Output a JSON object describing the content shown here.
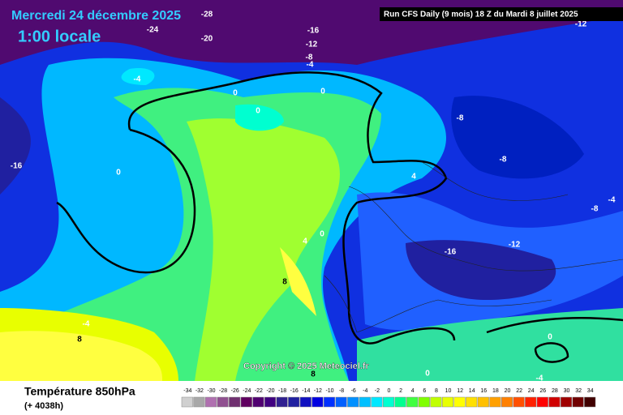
{
  "header": {
    "date": "Mercredi 24 décembre 2025",
    "time": "1:00 locale",
    "run": "Run CFS Daily (9 mois) 18 Z du Mardi 8 juillet 2025"
  },
  "copyright": "Copyright © 2025 Meteociel.fr",
  "footer": {
    "title": "Température 850hPa",
    "lead": "(+ 4038h)"
  },
  "contour_labels": [
    -28,
    -24,
    -20,
    -16,
    -12,
    -8,
    -4,
    -4,
    0,
    0,
    0,
    -8,
    -8,
    0,
    -16,
    4,
    -4,
    -8,
    0,
    4,
    -12,
    -16,
    8,
    -4,
    8,
    0,
    0,
    -4,
    8,
    -12
  ],
  "legend": {
    "steps": [
      {
        "value": -34,
        "color": "#d0d0d0"
      },
      {
        "value": -32,
        "color": "#a8a8a8"
      },
      {
        "value": -30,
        "color": "#b070b0"
      },
      {
        "value": -28,
        "color": "#905090"
      },
      {
        "value": -26,
        "color": "#703070"
      },
      {
        "value": -24,
        "color": "#600060"
      },
      {
        "value": -22,
        "color": "#500070"
      },
      {
        "value": -20,
        "color": "#400080"
      },
      {
        "value": -18,
        "color": "#302090"
      },
      {
        "value": -16,
        "color": "#2020a0"
      },
      {
        "value": -14,
        "color": "#1010c0"
      },
      {
        "value": -12,
        "color": "#0000e0"
      },
      {
        "value": -10,
        "color": "#0030ff"
      },
      {
        "value": -8,
        "color": "#0060ff"
      },
      {
        "value": -6,
        "color": "#0090ff"
      },
      {
        "value": -4,
        "color": "#00c0ff"
      },
      {
        "value": -2,
        "color": "#00e8ff"
      },
      {
        "value": 0,
        "color": "#00ffd0"
      },
      {
        "value": 2,
        "color": "#00ff90"
      },
      {
        "value": 4,
        "color": "#40ff40"
      },
      {
        "value": 6,
        "color": "#80ff00"
      },
      {
        "value": 8,
        "color": "#c0ff00"
      },
      {
        "value": 10,
        "color": "#e8ff00"
      },
      {
        "value": 12,
        "color": "#ffff00"
      },
      {
        "value": 14,
        "color": "#ffe000"
      },
      {
        "value": 16,
        "color": "#ffc000"
      },
      {
        "value": 18,
        "color": "#ffa000"
      },
      {
        "value": 20,
        "color": "#ff8000"
      },
      {
        "value": 22,
        "color": "#ff5000"
      },
      {
        "value": 24,
        "color": "#ff2000"
      },
      {
        "value": 26,
        "color": "#ff0000"
      },
      {
        "value": 28,
        "color": "#d00000"
      },
      {
        "value": 30,
        "color": "#a00000"
      },
      {
        "value": 32,
        "color": "#700000"
      },
      {
        "value": 34,
        "color": "#400000"
      }
    ]
  }
}
